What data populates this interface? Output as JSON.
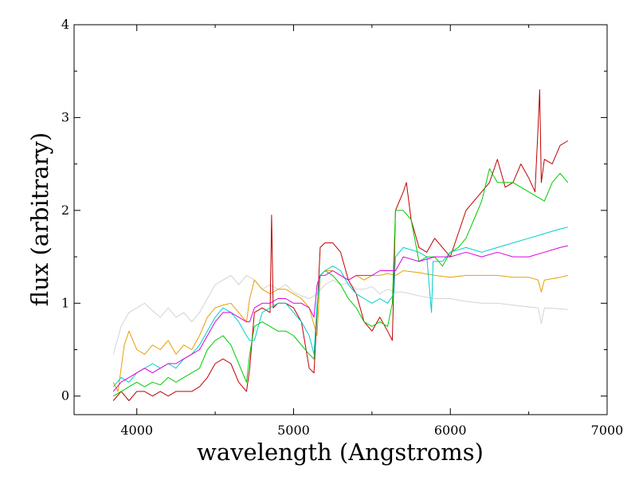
{
  "chart_data": {
    "type": "line",
    "title": "",
    "xlabel": "wavelength (Angstroms)",
    "ylabel": "flux (arbitrary)",
    "xlim": [
      3600,
      7000
    ],
    "ylim": [
      -0.2,
      4
    ],
    "xticks": [
      4000,
      5000,
      6000,
      7000
    ],
    "yticks": [
      0,
      1,
      2,
      3,
      4
    ],
    "grid": false,
    "legend": "none",
    "series": [
      {
        "name": "light-gray spectrum",
        "color": "#d3d3d3",
        "x": [
          3850,
          3900,
          3950,
          4000,
          4050,
          4100,
          4150,
          4200,
          4250,
          4300,
          4350,
          4400,
          4450,
          4500,
          4550,
          4600,
          4650,
          4700,
          4750,
          4800,
          4850,
          4900,
          4950,
          5000,
          5050,
          5100,
          5150,
          5200,
          5250,
          5300,
          5350,
          5400,
          5450,
          5500,
          5550,
          5600,
          5650,
          5700,
          5800,
          5900,
          6000,
          6100,
          6200,
          6300,
          6400,
          6500,
          6560,
          6580,
          6600,
          6700,
          6750
        ],
        "y": [
          0.45,
          0.75,
          0.9,
          0.95,
          1.0,
          0.92,
          0.85,
          0.95,
          0.85,
          0.9,
          0.8,
          0.9,
          1.05,
          1.2,
          1.25,
          1.3,
          1.2,
          1.3,
          1.25,
          1.15,
          1.2,
          1.15,
          1.2,
          1.12,
          1.08,
          1.05,
          1.1,
          1.2,
          1.25,
          1.2,
          1.22,
          1.15,
          1.15,
          1.18,
          1.1,
          1.15,
          1.12,
          1.12,
          1.08,
          1.05,
          1.05,
          1.02,
          1.0,
          1.0,
          0.98,
          0.96,
          0.95,
          0.78,
          0.95,
          0.94,
          0.93
        ]
      },
      {
        "name": "orange spectrum",
        "color": "#e69f00",
        "x": [
          3850,
          3880,
          3920,
          3950,
          4000,
          4050,
          4100,
          4150,
          4200,
          4250,
          4300,
          4350,
          4400,
          4450,
          4500,
          4550,
          4600,
          4650,
          4700,
          4720,
          4750,
          4800,
          4850,
          4900,
          4950,
          5000,
          5050,
          5100,
          5150,
          5170,
          5200,
          5250,
          5300,
          5350,
          5400,
          5450,
          5500,
          5550,
          5600,
          5650,
          5700,
          5800,
          5900,
          6000,
          6100,
          6200,
          6300,
          6400,
          6500,
          6560,
          6580,
          6600,
          6700,
          6750
        ],
        "y": [
          0.15,
          0.05,
          0.55,
          0.7,
          0.5,
          0.45,
          0.55,
          0.5,
          0.6,
          0.45,
          0.55,
          0.5,
          0.65,
          0.85,
          0.95,
          0.98,
          1.0,
          0.9,
          0.8,
          1.05,
          1.25,
          1.15,
          1.1,
          1.15,
          1.15,
          1.1,
          1.05,
          0.95,
          0.65,
          1.3,
          1.35,
          1.35,
          1.3,
          1.25,
          1.3,
          1.25,
          1.3,
          1.3,
          1.32,
          1.3,
          1.35,
          1.33,
          1.3,
          1.28,
          1.3,
          1.3,
          1.3,
          1.28,
          1.28,
          1.25,
          1.12,
          1.25,
          1.28,
          1.3
        ]
      },
      {
        "name": "dark-red spectrum",
        "color": "#c00000",
        "x": [
          3850,
          3900,
          3950,
          4000,
          4050,
          4100,
          4150,
          4200,
          4250,
          4300,
          4350,
          4400,
          4450,
          4500,
          4550,
          4600,
          4650,
          4700,
          4720,
          4750,
          4800,
          4850,
          4860,
          4870,
          4900,
          4950,
          5000,
          5050,
          5100,
          5130,
          5150,
          5170,
          5200,
          5250,
          5300,
          5350,
          5400,
          5450,
          5500,
          5550,
          5600,
          5630,
          5640,
          5650,
          5700,
          5720,
          5750,
          5800,
          5850,
          5900,
          5950,
          6000,
          6050,
          6100,
          6150,
          6200,
          6250,
          6300,
          6350,
          6400,
          6450,
          6500,
          6540,
          6560,
          6570,
          6580,
          6600,
          6650,
          6700,
          6750
        ],
        "y": [
          -0.05,
          0.05,
          -0.05,
          0.05,
          0.05,
          0.0,
          0.05,
          0.0,
          0.05,
          0.05,
          0.05,
          0.1,
          0.2,
          0.35,
          0.4,
          0.35,
          0.15,
          0.05,
          0.3,
          0.9,
          0.95,
          0.9,
          1.95,
          0.95,
          1.0,
          1.0,
          0.95,
          0.8,
          0.3,
          0.25,
          0.9,
          1.6,
          1.65,
          1.65,
          1.55,
          1.25,
          1.1,
          0.8,
          0.7,
          0.85,
          0.7,
          0.6,
          1.25,
          2.0,
          2.2,
          2.3,
          1.9,
          1.6,
          1.55,
          1.7,
          1.6,
          1.5,
          1.75,
          2.0,
          2.1,
          2.2,
          2.3,
          2.55,
          2.25,
          2.3,
          2.5,
          2.35,
          2.2,
          2.9,
          3.3,
          2.3,
          2.55,
          2.5,
          2.7,
          2.75
        ]
      },
      {
        "name": "green spectrum",
        "color": "#00cc00",
        "x": [
          3850,
          3900,
          3950,
          4000,
          4050,
          4100,
          4150,
          4200,
          4250,
          4300,
          4350,
          4400,
          4450,
          4500,
          4550,
          4600,
          4650,
          4700,
          4720,
          4750,
          4800,
          4850,
          4900,
          4950,
          5000,
          5050,
          5100,
          5130,
          5150,
          5170,
          5200,
          5250,
          5300,
          5350,
          5400,
          5450,
          5500,
          5550,
          5600,
          5630,
          5650,
          5700,
          5750,
          5800,
          5850,
          5900,
          5950,
          6000,
          6050,
          6100,
          6150,
          6200,
          6250,
          6300,
          6400,
          6500,
          6550,
          6600,
          6650,
          6700,
          6750
        ],
        "y": [
          0.0,
          0.05,
          0.1,
          0.15,
          0.1,
          0.15,
          0.12,
          0.2,
          0.15,
          0.2,
          0.25,
          0.3,
          0.5,
          0.6,
          0.65,
          0.55,
          0.35,
          0.15,
          0.45,
          0.75,
          0.8,
          0.75,
          0.7,
          0.7,
          0.65,
          0.55,
          0.45,
          0.4,
          0.95,
          1.3,
          1.35,
          1.3,
          1.2,
          1.05,
          0.95,
          0.8,
          0.75,
          0.8,
          0.75,
          1.0,
          2.0,
          2.0,
          1.9,
          1.45,
          1.5,
          1.5,
          1.4,
          1.55,
          1.6,
          1.7,
          1.9,
          2.1,
          2.45,
          2.3,
          2.3,
          2.2,
          2.15,
          2.1,
          2.3,
          2.4,
          2.3
        ]
      },
      {
        "name": "cyan spectrum",
        "color": "#00cccc",
        "x": [
          3850,
          3900,
          3950,
          4000,
          4050,
          4100,
          4150,
          4200,
          4250,
          4300,
          4350,
          4400,
          4450,
          4500,
          4550,
          4600,
          4650,
          4700,
          4720,
          4750,
          4800,
          4850,
          4900,
          4950,
          5000,
          5050,
          5100,
          5130,
          5150,
          5170,
          5200,
          5250,
          5300,
          5350,
          5400,
          5450,
          5500,
          5550,
          5600,
          5640,
          5650,
          5700,
          5800,
          5850,
          5880,
          5890,
          5900,
          5950,
          6000,
          6100,
          6200,
          6300,
          6400,
          6500,
          6600,
          6700,
          6750
        ],
        "y": [
          0.1,
          0.2,
          0.15,
          0.25,
          0.3,
          0.35,
          0.3,
          0.35,
          0.3,
          0.4,
          0.45,
          0.55,
          0.7,
          0.85,
          0.95,
          0.9,
          0.8,
          0.65,
          0.6,
          0.6,
          0.9,
          0.95,
          1.0,
          1.0,
          0.9,
          0.8,
          0.65,
          0.45,
          1.0,
          1.3,
          1.35,
          1.4,
          1.35,
          1.2,
          1.1,
          1.05,
          1.0,
          1.05,
          1.0,
          1.1,
          1.5,
          1.6,
          1.55,
          1.5,
          0.9,
          1.45,
          1.45,
          1.45,
          1.55,
          1.6,
          1.55,
          1.6,
          1.65,
          1.7,
          1.75,
          1.8,
          1.82
        ]
      },
      {
        "name": "magenta spectrum",
        "color": "#dd00dd",
        "x": [
          3850,
          3900,
          3950,
          4000,
          4050,
          4100,
          4150,
          4200,
          4250,
          4300,
          4350,
          4400,
          4450,
          4500,
          4550,
          4600,
          4650,
          4700,
          4720,
          4750,
          4800,
          4850,
          4900,
          4950,
          5000,
          5050,
          5100,
          5130,
          5150,
          5170,
          5200,
          5250,
          5300,
          5350,
          5400,
          5450,
          5500,
          5550,
          5600,
          5650,
          5700,
          5800,
          5900,
          6000,
          6100,
          6200,
          6300,
          6400,
          6500,
          6600,
          6700,
          6750
        ],
        "y": [
          0.05,
          0.15,
          0.2,
          0.25,
          0.3,
          0.25,
          0.3,
          0.35,
          0.35,
          0.4,
          0.45,
          0.5,
          0.65,
          0.8,
          0.9,
          0.9,
          0.85,
          0.8,
          0.8,
          0.95,
          1.0,
          1.0,
          1.05,
          1.05,
          1.0,
          1.0,
          0.95,
          0.85,
          1.2,
          1.3,
          1.3,
          1.35,
          1.3,
          1.25,
          1.3,
          1.3,
          1.3,
          1.35,
          1.35,
          1.35,
          1.5,
          1.45,
          1.5,
          1.5,
          1.55,
          1.5,
          1.55,
          1.5,
          1.5,
          1.55,
          1.6,
          1.62
        ]
      }
    ]
  }
}
